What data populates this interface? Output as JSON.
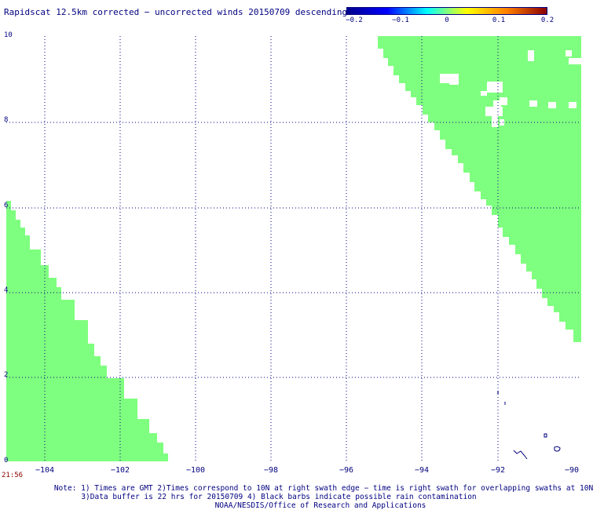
{
  "title": "Rapidscat 12.5km corrected − uncorrected winds 20150709 descending",
  "colorbar": {
    "ticks": [
      "−0.2",
      "−0.1",
      "0",
      "0.1",
      "0.2"
    ],
    "colors": [
      "#00008b",
      "#0000ff",
      "#00ffff",
      "#ffff00",
      "#ff8000",
      "#8b0000"
    ]
  },
  "map": {
    "y_ticks": [
      "10",
      "8",
      "6",
      "4",
      "2",
      "0"
    ],
    "x_ticks": [
      "−104",
      "−102",
      "−100",
      "−98",
      "−96",
      "−94",
      "−92",
      "−90"
    ],
    "swath_color": "#7fff7f",
    "grid_color": "#000080"
  },
  "timestamp": "21:56",
  "notes": {
    "line1": "Note: 1) Times are GMT 2)Times correspond to 10N at right swath edge − time is right swath for overlapping swaths at 10N",
    "line2": "3)Data buffer is 22 hrs for 20150709 4) Black barbs indicate possible rain contamination",
    "line3": "NOAA/NESDIS/Office of Research and Applications"
  },
  "chart_data": {
    "type": "map",
    "title": "Rapidscat 12.5km corrected − uncorrected winds 20150709 descending",
    "x_range": [
      -105,
      -90
    ],
    "y_range": [
      0,
      10
    ],
    "x_ticks": [
      -104,
      -102,
      -100,
      -98,
      -96,
      -94,
      -92,
      -90
    ],
    "y_ticks": [
      0,
      2,
      4,
      6,
      8,
      10
    ],
    "colorbar_range": [
      -0.2,
      0.2
    ],
    "grid": true
  }
}
